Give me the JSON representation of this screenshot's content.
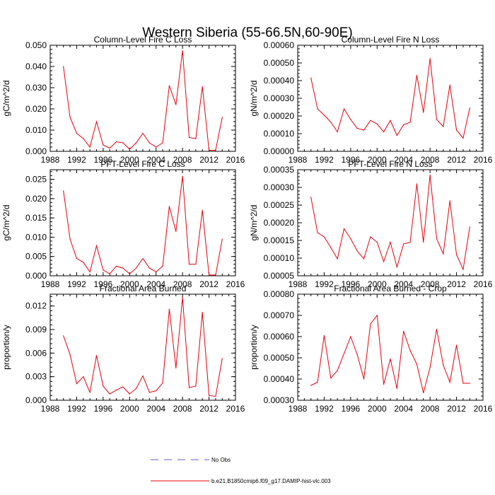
{
  "figure_title": "Western Siberia (55-66.5N,60-90E)",
  "legend": [
    {
      "label": "No Obs",
      "color": "#6a5acd",
      "style": "dashed"
    },
    {
      "label": "b.e21.B1850cmip6.f09_g17.DAMIP-hist-vlc.003",
      "color": "#e8000b",
      "style": "solid"
    }
  ],
  "line_color": "#e8000b",
  "chart_data": [
    {
      "type": "line",
      "title": "Column-Level Fire C Loss",
      "ylabel": "gC/m^2/d",
      "xlim": [
        1988,
        2016
      ],
      "ylim": [
        0,
        0.05
      ],
      "xticks": [
        "1988",
        "1992",
        "1996",
        "2000",
        "2004",
        "2008",
        "2012",
        "2016"
      ],
      "yticks": [
        "0.000",
        "0.010",
        "0.020",
        "0.030",
        "0.040",
        "0.050"
      ],
      "x": [
        1990,
        1991,
        1992,
        1993,
        1994,
        1995,
        1996,
        1997,
        1998,
        1999,
        2000,
        2001,
        2002,
        2003,
        2004,
        2005,
        2006,
        2007,
        2008,
        2009,
        2010,
        2011,
        2012,
        2013,
        2014
      ],
      "values": [
        0.04,
        0.016,
        0.0085,
        0.006,
        0.002,
        0.014,
        0.003,
        0.0015,
        0.0045,
        0.004,
        0.001,
        0.004,
        0.0085,
        0.004,
        0.002,
        0.004,
        0.031,
        0.022,
        0.0475,
        0.0065,
        0.006,
        0.0305,
        0.0005,
        0.0005,
        0.016
      ]
    },
    {
      "type": "line",
      "title": "Column-Level Fire N Loss",
      "ylabel": "gN/m^2/d",
      "xlim": [
        1988,
        2016
      ],
      "ylim": [
        0,
        0.0006
      ],
      "xticks": [
        "1988",
        "1992",
        "1996",
        "2000",
        "2004",
        "2008",
        "2012",
        "2016"
      ],
      "yticks": [
        "0.00000",
        "0.00010",
        "0.00020",
        "0.00030",
        "0.00040",
        "0.00050",
        "0.00060"
      ],
      "x": [
        1990,
        1991,
        1992,
        1993,
        1994,
        1995,
        1996,
        1997,
        1998,
        1999,
        2000,
        2001,
        2002,
        2003,
        2004,
        2005,
        2006,
        2007,
        2008,
        2009,
        2010,
        2011,
        2012,
        2013,
        2014
      ],
      "values": [
        0.000415,
        0.00024,
        0.000205,
        0.000165,
        0.00011,
        0.00024,
        0.00018,
        0.00013,
        0.00012,
        0.000175,
        0.000155,
        0.00011,
        0.000175,
        9e-05,
        0.00015,
        0.000165,
        0.00043,
        0.00022,
        0.000525,
        0.00018,
        0.00014,
        0.000375,
        0.00012,
        7.5e-05,
        0.000245
      ]
    },
    {
      "type": "line",
      "title": "PFT-Level Fire C Loss",
      "ylabel": "gC/m^2/d",
      "xlim": [
        1988,
        2016
      ],
      "ylim": [
        0,
        0.0275
      ],
      "xticks": [
        "1988",
        "1992",
        "1996",
        "2000",
        "2004",
        "2008",
        "2012",
        "2016"
      ],
      "yticks": [
        "0.000",
        "0.005",
        "0.010",
        "0.015",
        "0.020",
        "0.025"
      ],
      "x": [
        1990,
        1991,
        1992,
        1993,
        1994,
        1995,
        1996,
        1997,
        1998,
        1999,
        2000,
        2001,
        2002,
        2003,
        2004,
        2005,
        2006,
        2007,
        2008,
        2009,
        2010,
        2011,
        2012,
        2013,
        2014
      ],
      "values": [
        0.022,
        0.0095,
        0.0045,
        0.0035,
        0.001,
        0.0078,
        0.0015,
        0.0005,
        0.0025,
        0.002,
        0.0005,
        0.002,
        0.0045,
        0.002,
        0.001,
        0.0025,
        0.018,
        0.0115,
        0.0258,
        0.003,
        0.003,
        0.017,
        0.0002,
        0.0002,
        0.0095
      ]
    },
    {
      "type": "line",
      "title": "PFT-Level Fire N Loss",
      "ylabel": "gN/m^2/d",
      "xlim": [
        1988,
        2016
      ],
      "ylim": [
        5e-05,
        0.00035
      ],
      "xticks": [
        "1988",
        "1992",
        "1996",
        "2000",
        "2004",
        "2008",
        "2012",
        "2016"
      ],
      "yticks": [
        "0.00005",
        "0.00010",
        "0.00015",
        "0.00020",
        "0.00025",
        "0.00030",
        "0.00035"
      ],
      "x": [
        1990,
        1991,
        1992,
        1993,
        1994,
        1995,
        1996,
        1997,
        1998,
        1999,
        2000,
        2001,
        2002,
        2003,
        2004,
        2005,
        2006,
        2007,
        2008,
        2009,
        2010,
        2011,
        2012,
        2013,
        2014
      ],
      "values": [
        0.000272,
        0.000172,
        0.00016,
        0.00013,
        9.8e-05,
        0.000183,
        0.000155,
        0.00012,
        9.8e-05,
        0.00016,
        0.000145,
        9e-05,
        0.000145,
        7.5e-05,
        0.00014,
        0.000145,
        0.00031,
        0.000145,
        0.000335,
        0.000155,
        0.000112,
        0.000262,
        0.00011,
        6.8e-05,
        0.000188
      ]
    },
    {
      "type": "line",
      "title": "Fractional Area Burned",
      "ylabel": "proportion/y",
      "xlim": [
        1988,
        2016
      ],
      "ylim": [
        0,
        0.0135
      ],
      "xticks": [
        "1988",
        "1992",
        "1996",
        "2000",
        "2004",
        "2008",
        "2012",
        "2016"
      ],
      "yticks": [
        "0.000",
        "0.003",
        "0.006",
        "0.009",
        "0.012"
      ],
      "x": [
        1990,
        1991,
        1992,
        1993,
        1994,
        1995,
        1996,
        1997,
        1998,
        1999,
        2000,
        2001,
        2002,
        2003,
        2004,
        2005,
        2006,
        2007,
        2008,
        2009,
        2010,
        2011,
        2012,
        2013,
        2014
      ],
      "values": [
        0.0082,
        0.0058,
        0.0021,
        0.003,
        0.001,
        0.0057,
        0.0018,
        0.0008,
        0.0013,
        0.0017,
        0.0008,
        0.0015,
        0.0031,
        0.001,
        0.0012,
        0.0022,
        0.0116,
        0.0041,
        0.0131,
        0.0016,
        0.0018,
        0.0112,
        0.0006,
        0.0005,
        0.0053
      ]
    },
    {
      "type": "line",
      "title": "Fractional Area Burned - Crop",
      "ylabel": "proportion/y",
      "xlim": [
        1988,
        2016
      ],
      "ylim": [
        0.0003,
        0.0008
      ],
      "xticks": [
        "1988",
        "1992",
        "1996",
        "2000",
        "2004",
        "2008",
        "2012",
        "2016"
      ],
      "yticks": [
        "0.00030",
        "0.00040",
        "0.00050",
        "0.00060",
        "0.00070",
        "0.00080"
      ],
      "x": [
        1990,
        1991,
        1992,
        1993,
        1994,
        1995,
        1996,
        1997,
        1998,
        1999,
        2000,
        2001,
        2002,
        2003,
        2004,
        2005,
        2006,
        2007,
        2008,
        2009,
        2010,
        2011,
        2012,
        2013,
        2014
      ],
      "values": [
        0.00037,
        0.000385,
        0.000605,
        0.000405,
        0.00044,
        0.00052,
        0.0006,
        0.000515,
        0.0004,
        0.00066,
        0.0007,
        0.000375,
        0.000495,
        0.000355,
        0.000625,
        0.000535,
        0.00047,
        0.000335,
        0.000455,
        0.000635,
        0.000465,
        0.000385,
        0.00056,
        0.00038,
        0.00038
      ]
    }
  ]
}
